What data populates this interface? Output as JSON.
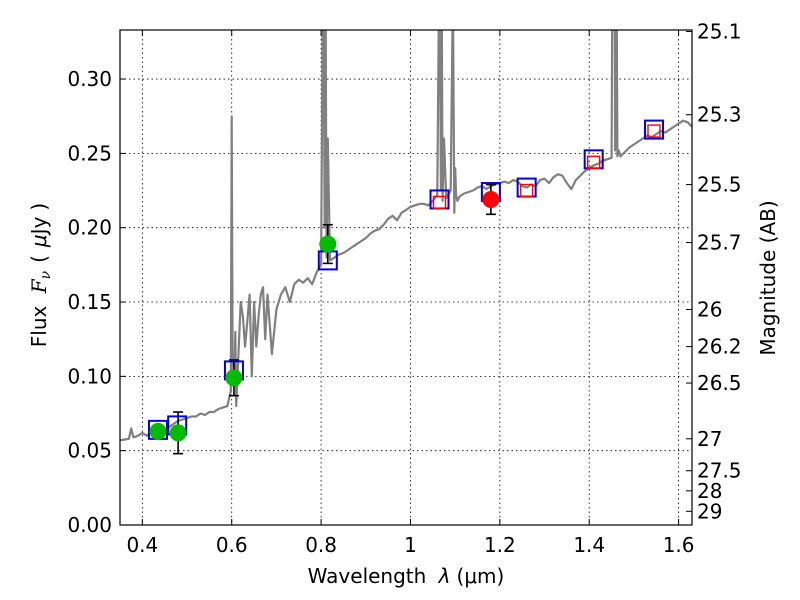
{
  "chart_data": {
    "type": "line",
    "title": "",
    "xlabel": "Wavelength  λ (μm)",
    "xlabel_parts": {
      "main": "Wavelength ",
      "lambda": "λ",
      "unit": "(μm)"
    },
    "ylabel_parts": {
      "flux": "Flux ",
      "f": "F",
      "nu": "ν",
      "open": "(",
      "mu": "μ",
      "jy": "Jy",
      "close": ")"
    },
    "ylabel_right": "Magnitude (AB)",
    "xlim": [
      0.35,
      1.63
    ],
    "ylim": [
      0.0,
      0.333
    ],
    "xticks": [
      {
        "v": 0.4,
        "l": "0.4"
      },
      {
        "v": 0.6,
        "l": "0.6"
      },
      {
        "v": 0.8,
        "l": "0.8"
      },
      {
        "v": 1.0,
        "l": "1"
      },
      {
        "v": 1.2,
        "l": "1.2"
      },
      {
        "v": 1.4,
        "l": "1.4"
      },
      {
        "v": 1.6,
        "l": "1.6"
      }
    ],
    "yticks": [
      {
        "v": 0.0,
        "l": "0.00"
      },
      {
        "v": 0.05,
        "l": "0.05"
      },
      {
        "v": 0.1,
        "l": "0.10"
      },
      {
        "v": 0.15,
        "l": "0.15"
      },
      {
        "v": 0.2,
        "l": "0.20"
      },
      {
        "v": 0.25,
        "l": "0.25"
      },
      {
        "v": 0.3,
        "l": "0.30"
      }
    ],
    "right_ticks": [
      {
        "flux": 0.332,
        "l": "25.1"
      },
      {
        "flux": 0.276,
        "l": "25.3"
      },
      {
        "flux": 0.229,
        "l": "25.5"
      },
      {
        "flux": 0.19,
        "l": "25.7"
      },
      {
        "flux": 0.145,
        "l": "26"
      },
      {
        "flux": 0.12,
        "l": "26.2"
      },
      {
        "flux": 0.0955,
        "l": "26.5"
      },
      {
        "flux": 0.058,
        "l": "27"
      },
      {
        "flux": 0.0365,
        "l": "27.5"
      },
      {
        "flux": 0.023,
        "l": "28"
      },
      {
        "flux": 0.0092,
        "l": "29"
      }
    ],
    "grid": true,
    "series": [
      {
        "name": "SED template",
        "color": "#808080",
        "x": [
          0.35,
          0.37,
          0.375,
          0.38,
          0.39,
          0.4,
          0.41,
          0.42,
          0.43,
          0.44,
          0.45,
          0.46,
          0.47,
          0.48,
          0.49,
          0.5,
          0.51,
          0.52,
          0.53,
          0.54,
          0.55,
          0.56,
          0.57,
          0.58,
          0.59,
          0.598,
          0.6,
          0.602,
          0.606,
          0.608,
          0.61,
          0.62,
          0.625,
          0.63,
          0.64,
          0.645,
          0.65,
          0.655,
          0.66,
          0.665,
          0.67,
          0.675,
          0.68,
          0.69,
          0.7,
          0.71,
          0.72,
          0.73,
          0.74,
          0.75,
          0.76,
          0.77,
          0.78,
          0.79,
          0.8,
          0.805,
          0.808,
          0.81,
          0.812,
          0.815,
          0.82,
          0.83,
          0.84,
          0.85,
          0.86,
          0.87,
          0.88,
          0.89,
          0.9,
          0.91,
          0.92,
          0.93,
          0.94,
          0.95,
          0.96,
          0.97,
          0.98,
          0.99,
          1.0,
          1.01,
          1.02,
          1.03,
          1.04,
          1.05,
          1.06,
          1.065,
          1.068,
          1.07,
          1.072,
          1.075,
          1.08,
          1.09,
          1.095,
          1.098,
          1.1,
          1.102,
          1.105,
          1.11,
          1.12,
          1.13,
          1.14,
          1.15,
          1.16,
          1.17,
          1.18,
          1.19,
          1.2,
          1.21,
          1.22,
          1.23,
          1.24,
          1.25,
          1.26,
          1.27,
          1.28,
          1.29,
          1.3,
          1.31,
          1.32,
          1.33,
          1.34,
          1.35,
          1.36,
          1.37,
          1.38,
          1.39,
          1.4,
          1.41,
          1.42,
          1.43,
          1.44,
          1.45,
          1.455,
          1.458,
          1.46,
          1.463,
          1.466,
          1.47,
          1.48,
          1.49,
          1.5,
          1.51,
          1.52,
          1.53,
          1.54,
          1.55,
          1.56,
          1.57,
          1.58,
          1.59,
          1.6,
          1.61,
          1.62,
          1.63
        ],
        "y": [
          0.057,
          0.058,
          0.065,
          0.059,
          0.06,
          0.062,
          0.06,
          0.063,
          0.065,
          0.062,
          0.064,
          0.066,
          0.068,
          0.07,
          0.071,
          0.072,
          0.073,
          0.073,
          0.075,
          0.074,
          0.076,
          0.076,
          0.078,
          0.079,
          0.08,
          0.09,
          0.275,
          0.11,
          0.1,
          0.13,
          0.08,
          0.15,
          0.14,
          0.12,
          0.155,
          0.1,
          0.15,
          0.12,
          0.14,
          0.155,
          0.16,
          0.125,
          0.155,
          0.115,
          0.145,
          0.155,
          0.16,
          0.15,
          0.162,
          0.165,
          0.163,
          0.166,
          0.162,
          0.17,
          0.175,
          0.4,
          0.2,
          0.36,
          0.18,
          0.26,
          0.178,
          0.18,
          0.182,
          0.183,
          0.185,
          0.187,
          0.189,
          0.191,
          0.193,
          0.196,
          0.198,
          0.199,
          0.202,
          0.206,
          0.208,
          0.205,
          0.21,
          0.212,
          0.214,
          0.215,
          0.216,
          0.216,
          0.215,
          0.218,
          0.222,
          0.4,
          0.225,
          0.34,
          0.218,
          0.26,
          0.22,
          0.225,
          0.36,
          0.21,
          0.24,
          0.222,
          0.218,
          0.221,
          0.223,
          0.224,
          0.225,
          0.227,
          0.228,
          0.226,
          0.228,
          0.229,
          0.23,
          0.231,
          0.23,
          0.232,
          0.231,
          0.228,
          0.227,
          0.229,
          0.228,
          0.232,
          0.233,
          0.23,
          0.234,
          0.236,
          0.235,
          0.23,
          0.226,
          0.232,
          0.235,
          0.238,
          0.24,
          0.242,
          0.243,
          0.245,
          0.246,
          0.247,
          0.6,
          0.252,
          0.45,
          0.248,
          0.252,
          0.248,
          0.251,
          0.254,
          0.256,
          0.258,
          0.26,
          0.262,
          0.261,
          0.263,
          0.265,
          0.264,
          0.266,
          0.268,
          0.27,
          0.272,
          0.271,
          0.268
        ]
      },
      {
        "name": "model bands (blue squares)",
        "color": "#0000dd",
        "marker": "square",
        "x": [
          0.435,
          0.478,
          0.605,
          0.815,
          1.065,
          1.18,
          1.26,
          1.41,
          1.545
        ],
        "y": [
          0.064,
          0.067,
          0.104,
          0.178,
          0.219,
          0.224,
          0.227,
          0.246,
          0.266
        ]
      },
      {
        "name": "upper limits (red squares)",
        "color": "#ff0000",
        "marker": "open-square",
        "x": [
          1.065,
          1.26,
          1.41,
          1.545
        ],
        "y": [
          0.217,
          0.225,
          0.244,
          0.265
        ]
      },
      {
        "name": "observed (green circles)",
        "color": "#00bb00",
        "marker": "circle",
        "x": [
          0.435,
          0.48,
          0.605,
          0.815
        ],
        "y": [
          0.063,
          0.062,
          0.099,
          0.189
        ],
        "yerr": [
          0,
          0.014,
          0.012,
          0.013
        ]
      },
      {
        "name": "observed (red circle)",
        "color": "#ff0000",
        "marker": "circle",
        "x": [
          1.18
        ],
        "y": [
          0.219
        ],
        "yerr": [
          0.01
        ]
      }
    ]
  }
}
